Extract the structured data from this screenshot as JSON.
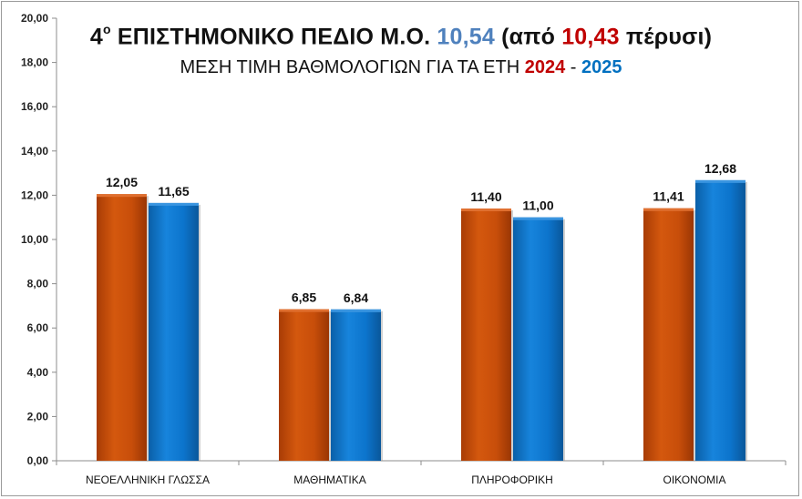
{
  "title": {
    "prefix_number": "4",
    "superscript": "ο",
    "main": "ΕΠΙΣΤΗΜΟΝΙΚΟ ΠΕΔΙΟ Μ.Ο.",
    "current_avg": "10,54",
    "paren_open": "(από",
    "previous_avg": "10,43",
    "paren_close": "πέρυσι)"
  },
  "subtitle": {
    "text": "ΜΕΣΗ ΤΙΜΗ ΒΑΘΜΟΛΟΓΙΩΝ ΓΙΑ ΤΑ ΕΤΗ",
    "year1": "2024",
    "separator": "-",
    "year2": "2025"
  },
  "colors": {
    "series_2024": "#c84e0a",
    "series_2025": "#0c74cc",
    "title_blue": "#4f81bd",
    "title_red": "#c00000"
  },
  "chart_data": {
    "type": "bar",
    "categories": [
      "ΝΕΟΕΛΛΗΝΙΚΗ ΓΛΩΣΣΑ",
      "ΜΑΘΗΜΑΤΙΚΑ",
      "ΠΛΗΡΟΦΟΡΙΚΗ",
      "ΟΙΚΟΝΟΜΙΑ"
    ],
    "series": [
      {
        "values": [
          12.05,
          6.85,
          11.4,
          11.41
        ],
        "labels": [
          "12,05",
          "6,85",
          "11,40",
          "11,41"
        ]
      },
      {
        "values": [
          11.65,
          6.84,
          11.0,
          12.68
        ],
        "labels": [
          "11,65",
          "6,84",
          "11,00",
          "12,68"
        ]
      }
    ],
    "ylim": [
      0,
      20
    ],
    "yticks": [
      "0,00",
      "2,00",
      "4,00",
      "6,00",
      "8,00",
      "10,00",
      "12,00",
      "14,00",
      "16,00",
      "18,00",
      "20,00"
    ],
    "grid": false,
    "legend": "none"
  }
}
